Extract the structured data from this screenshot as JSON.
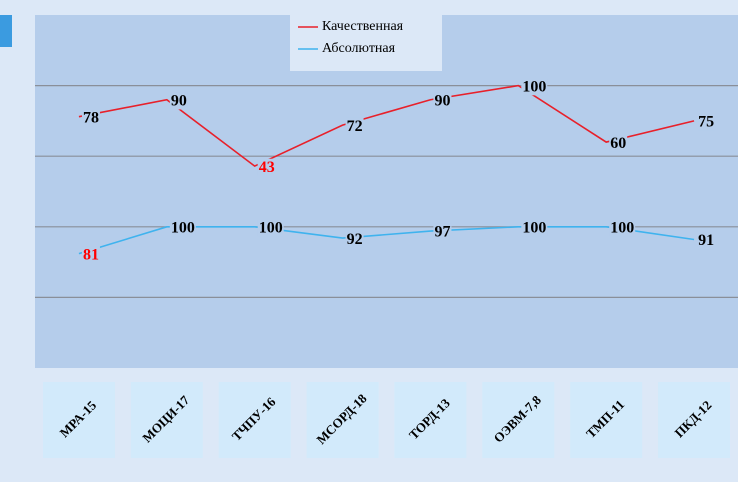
{
  "chart_data": {
    "type": "line",
    "categories": [
      "МРА-15",
      "МОЦИ-17",
      "ТЧПУ-16",
      "МСОРД-18",
      "ТОРД-13",
      "ОЭВМ-7,8",
      "ТМП-11",
      "ПКД-12"
    ],
    "series": [
      {
        "name": "Качественная",
        "color": "#e8202a",
        "values": [
          78,
          90,
          43,
          72,
          90,
          100,
          60,
          75
        ],
        "label_colors": [
          "#000000",
          "#000000",
          "#ff0000",
          "#000000",
          "#000000",
          "#000000",
          "#000000",
          "#000000"
        ]
      },
      {
        "name": "Абсолютная",
        "color": "#3fb3ee",
        "axis": "y2",
        "values": [
          81,
          100,
          100,
          92,
          97,
          100,
          100,
          91
        ],
        "label_colors": [
          "#ff0000",
          "#000000",
          "#000000",
          "#000000",
          "#000000",
          "#000000",
          "#000000",
          "#000000"
        ]
      }
    ],
    "ylim": [
      -100,
      150
    ],
    "yticks": [
      -50,
      0,
      50,
      100
    ],
    "y2lim": [
      0,
      250
    ],
    "grid": true,
    "legend": "top"
  }
}
